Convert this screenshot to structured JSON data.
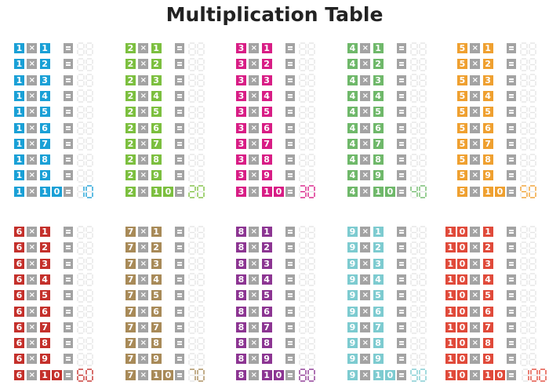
{
  "title": "Multiplication Table",
  "operator_symbol": "×",
  "ghost_color": "#e5e5e5",
  "operator_color": "#a3a3a3",
  "tables": [
    {
      "n": "1",
      "color": "#1aa0d6",
      "rows": [
        {
          "m": "1"
        },
        {
          "m": "2"
        },
        {
          "m": "3"
        },
        {
          "m": "4"
        },
        {
          "m": "5"
        },
        {
          "m": "6"
        },
        {
          "m": "7"
        },
        {
          "m": "8"
        },
        {
          "m": "9"
        },
        {
          "m": "10",
          "product": "10"
        }
      ]
    },
    {
      "n": "2",
      "color": "#7cbf3f",
      "rows": [
        {
          "m": "1"
        },
        {
          "m": "2"
        },
        {
          "m": "3"
        },
        {
          "m": "4"
        },
        {
          "m": "5"
        },
        {
          "m": "6"
        },
        {
          "m": "7"
        },
        {
          "m": "8"
        },
        {
          "m": "9"
        },
        {
          "m": "10",
          "product": "20"
        }
      ]
    },
    {
      "n": "3",
      "color": "#d81d85",
      "rows": [
        {
          "m": "1"
        },
        {
          "m": "2"
        },
        {
          "m": "3"
        },
        {
          "m": "4"
        },
        {
          "m": "5"
        },
        {
          "m": "6"
        },
        {
          "m": "7"
        },
        {
          "m": "8"
        },
        {
          "m": "9"
        },
        {
          "m": "10",
          "product": "30"
        }
      ]
    },
    {
      "n": "4",
      "color": "#6fb86a",
      "rows": [
        {
          "m": "1"
        },
        {
          "m": "2"
        },
        {
          "m": "3"
        },
        {
          "m": "4"
        },
        {
          "m": "5"
        },
        {
          "m": "6"
        },
        {
          "m": "7"
        },
        {
          "m": "8"
        },
        {
          "m": "9"
        },
        {
          "m": "10",
          "product": "40"
        }
      ]
    },
    {
      "n": "5",
      "color": "#efa030",
      "rows": [
        {
          "m": "1"
        },
        {
          "m": "2"
        },
        {
          "m": "3"
        },
        {
          "m": "4"
        },
        {
          "m": "5"
        },
        {
          "m": "6"
        },
        {
          "m": "7"
        },
        {
          "m": "8"
        },
        {
          "m": "9"
        },
        {
          "m": "10",
          "product": "50"
        }
      ]
    },
    {
      "n": "6",
      "color": "#c4302b",
      "rows": [
        {
          "m": "1"
        },
        {
          "m": "2"
        },
        {
          "m": "3"
        },
        {
          "m": "4"
        },
        {
          "m": "5"
        },
        {
          "m": "6"
        },
        {
          "m": "7"
        },
        {
          "m": "8"
        },
        {
          "m": "9"
        },
        {
          "m": "10",
          "product": "60"
        }
      ]
    },
    {
      "n": "7",
      "color": "#a88a58",
      "rows": [
        {
          "m": "1"
        },
        {
          "m": "2"
        },
        {
          "m": "3"
        },
        {
          "m": "4"
        },
        {
          "m": "5"
        },
        {
          "m": "6"
        },
        {
          "m": "7"
        },
        {
          "m": "8"
        },
        {
          "m": "9"
        },
        {
          "m": "10",
          "product": "70"
        }
      ]
    },
    {
      "n": "8",
      "color": "#8c3592",
      "rows": [
        {
          "m": "1"
        },
        {
          "m": "2"
        },
        {
          "m": "3"
        },
        {
          "m": "4"
        },
        {
          "m": "5"
        },
        {
          "m": "6"
        },
        {
          "m": "7"
        },
        {
          "m": "8"
        },
        {
          "m": "9"
        },
        {
          "m": "10",
          "product": "80"
        }
      ]
    },
    {
      "n": "9",
      "color": "#7dcbd0",
      "rows": [
        {
          "m": "1"
        },
        {
          "m": "2"
        },
        {
          "m": "3"
        },
        {
          "m": "4"
        },
        {
          "m": "5"
        },
        {
          "m": "6"
        },
        {
          "m": "7"
        },
        {
          "m": "8"
        },
        {
          "m": "9"
        },
        {
          "m": "10",
          "product": "90"
        }
      ]
    },
    {
      "n": "10",
      "color": "#e04a3a",
      "rows": [
        {
          "m": "1"
        },
        {
          "m": "2"
        },
        {
          "m": "3"
        },
        {
          "m": "4"
        },
        {
          "m": "5"
        },
        {
          "m": "6"
        },
        {
          "m": "7"
        },
        {
          "m": "8"
        },
        {
          "m": "9"
        },
        {
          "m": "10",
          "product": "100"
        }
      ]
    }
  ]
}
